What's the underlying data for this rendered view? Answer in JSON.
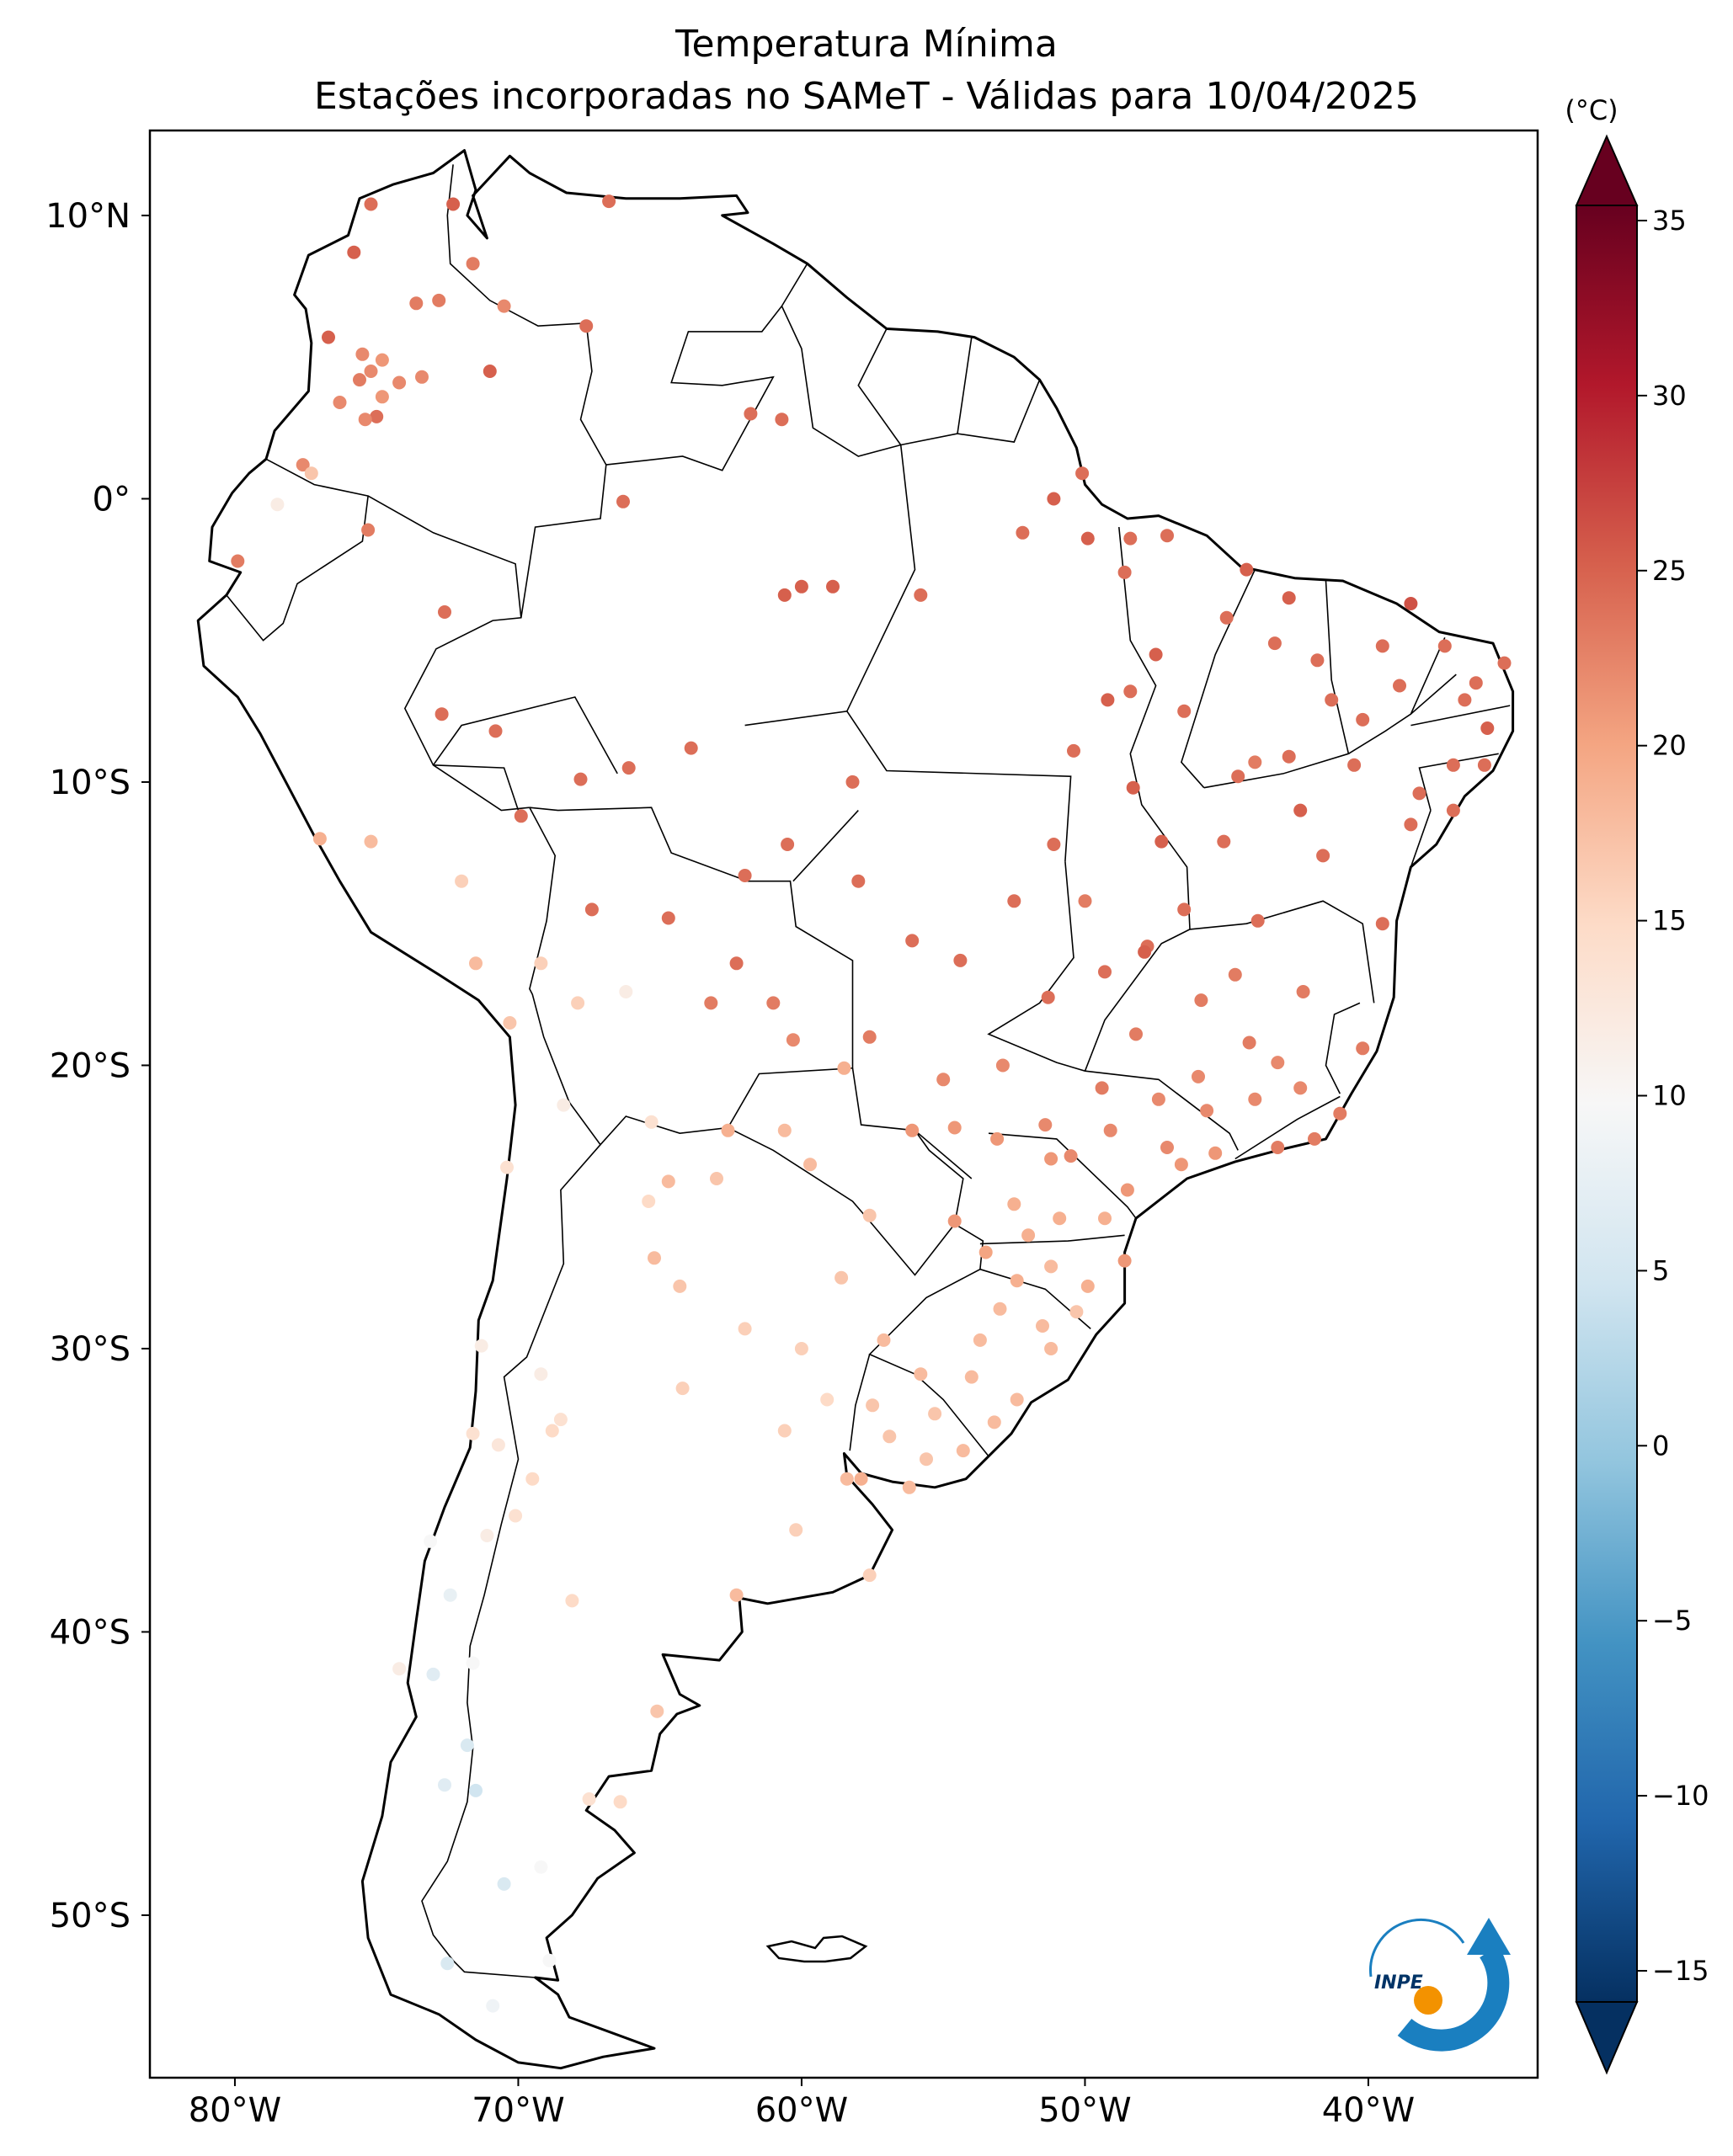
{
  "title": {
    "line1": "Temperatura Mínima",
    "line2": "Estações incorporadas no SAMeT - Válidas para 10/04/2025"
  },
  "axes": {
    "lat_ticks": [
      "10°N",
      "0°",
      "10°S",
      "20°S",
      "30°S",
      "40°S",
      "50°S"
    ],
    "lon_ticks": [
      "80°W",
      "70°W",
      "60°W",
      "50°W",
      "40°W"
    ]
  },
  "colorbar": {
    "unit": "(°C)",
    "ticks": [
      "35",
      "30",
      "25",
      "20",
      "15",
      "10",
      "5",
      "0",
      "−5",
      "−10",
      "−15"
    ],
    "min": -15,
    "max": 35,
    "colors": [
      "#053061",
      "#2166ac",
      "#4393c3",
      "#92c5de",
      "#d1e5f0",
      "#f7f7f7",
      "#fddbc7",
      "#f4a582",
      "#d6604d",
      "#b2182b",
      "#67001f"
    ]
  },
  "logo": {
    "text": "INPE",
    "arc_color": "#1a7fc0",
    "dot_color": "#f39200"
  },
  "stations": [
    [
      -75.2,
      10.4,
      24
    ],
    [
      -72.3,
      10.4,
      25
    ],
    [
      -66.8,
      10.5,
      24
    ],
    [
      -71.6,
      8.3,
      23
    ],
    [
      -75.8,
      8.7,
      25
    ],
    [
      -73.6,
      6.9,
      23
    ],
    [
      -72.8,
      7.0,
      23
    ],
    [
      -70.5,
      6.8,
      22
    ],
    [
      -67.6,
      6.1,
      24
    ],
    [
      -76.7,
      5.7,
      25
    ],
    [
      -75.5,
      5.1,
      22
    ],
    [
      -74.8,
      4.9,
      21
    ],
    [
      -73.4,
      4.3,
      22
    ],
    [
      -75.2,
      4.5,
      22
    ],
    [
      -75.6,
      4.2,
      23
    ],
    [
      -74.2,
      4.1,
      22
    ],
    [
      -74.8,
      3.6,
      21
    ],
    [
      -76.3,
      3.4,
      22
    ],
    [
      -75.0,
      2.9,
      24
    ],
    [
      -75.4,
      2.8,
      22
    ],
    [
      -71.0,
      4.5,
      25
    ],
    [
      -77.6,
      1.2,
      22
    ],
    [
      -77.3,
      0.9,
      17
    ],
    [
      -78.5,
      -0.2,
      12
    ],
    [
      -75.3,
      -1.1,
      23
    ],
    [
      -79.9,
      -2.2,
      23
    ],
    [
      -72.6,
      -4.0,
      24
    ],
    [
      -66.3,
      -0.1,
      24
    ],
    [
      -61.8,
      3.0,
      24
    ],
    [
      -60.7,
      2.8,
      24
    ],
    [
      -60.0,
      -3.1,
      25
    ],
    [
      -60.6,
      -3.4,
      25
    ],
    [
      -58.9,
      -3.1,
      25
    ],
    [
      -55.8,
      -3.4,
      24
    ],
    [
      -52.2,
      -1.2,
      24
    ],
    [
      -51.1,
      0.0,
      25
    ],
    [
      -50.1,
      0.9,
      24
    ],
    [
      -49.9,
      -1.4,
      25
    ],
    [
      -48.4,
      -1.4,
      24
    ],
    [
      -48.6,
      -2.6,
      24
    ],
    [
      -47.1,
      -1.3,
      24
    ],
    [
      -44.3,
      -2.5,
      25
    ],
    [
      -42.8,
      -3.5,
      25
    ],
    [
      -45.0,
      -4.2,
      24
    ],
    [
      -47.5,
      -5.5,
      25
    ],
    [
      -48.4,
      -6.8,
      24
    ],
    [
      -49.2,
      -7.1,
      25
    ],
    [
      -50.4,
      -8.9,
      24
    ],
    [
      -46.5,
      -7.5,
      24
    ],
    [
      -43.3,
      -5.1,
      24
    ],
    [
      -41.8,
      -5.7,
      24
    ],
    [
      -39.5,
      -5.2,
      24
    ],
    [
      -38.5,
      -3.7,
      26
    ],
    [
      -37.3,
      -5.2,
      24
    ],
    [
      -38.9,
      -6.6,
      24
    ],
    [
      -36.6,
      -7.1,
      24
    ],
    [
      -35.2,
      -5.8,
      24
    ],
    [
      -35.8,
      -8.1,
      25
    ],
    [
      -37.0,
      -9.4,
      24
    ],
    [
      -38.5,
      -11.5,
      24
    ],
    [
      -40.5,
      -9.4,
      24
    ],
    [
      -42.4,
      -11.0,
      25
    ],
    [
      -44.6,
      -9.8,
      24
    ],
    [
      -43.9,
      -14.9,
      24
    ],
    [
      -41.6,
      -12.6,
      24
    ],
    [
      -39.5,
      -15.0,
      24
    ],
    [
      -40.2,
      -19.4,
      23
    ],
    [
      -42.3,
      -17.4,
      23
    ],
    [
      -43.2,
      -19.9,
      22
    ],
    [
      -44.7,
      -16.8,
      23
    ],
    [
      -45.9,
      -17.7,
      23
    ],
    [
      -47.8,
      -15.8,
      24
    ],
    [
      -49.3,
      -16.7,
      24
    ],
    [
      -51.3,
      -17.6,
      24
    ],
    [
      -48.3,
      -10.2,
      25
    ],
    [
      -47.3,
      -12.1,
      25
    ],
    [
      -46.5,
      -14.5,
      24
    ],
    [
      -51.1,
      -12.2,
      24
    ],
    [
      -52.5,
      -14.2,
      24
    ],
    [
      -54.4,
      -16.3,
      24
    ],
    [
      -56.1,
      -15.6,
      24
    ],
    [
      -58.0,
      -13.5,
      24
    ],
    [
      -58.2,
      -10.0,
      24
    ],
    [
      -60.5,
      -12.2,
      24
    ],
    [
      -62.0,
      -13.3,
      24
    ],
    [
      -63.9,
      -8.8,
      24
    ],
    [
      -66.1,
      -9.5,
      24
    ],
    [
      -67.8,
      -9.9,
      24
    ],
    [
      -69.9,
      -11.2,
      24
    ],
    [
      -72.7,
      -7.6,
      24
    ],
    [
      -70.8,
      -8.2,
      24
    ],
    [
      -67.4,
      -14.5,
      24
    ],
    [
      -64.7,
      -14.8,
      24
    ],
    [
      -63.2,
      -17.8,
      23
    ],
    [
      -61.0,
      -17.8,
      23
    ],
    [
      -60.3,
      -19.1,
      22
    ],
    [
      -62.3,
      -16.4,
      24
    ],
    [
      -57.6,
      -19.0,
      23
    ],
    [
      -55.0,
      -20.5,
      22
    ],
    [
      -54.6,
      -22.2,
      21
    ],
    [
      -53.1,
      -22.6,
      21
    ],
    [
      -51.4,
      -22.1,
      22
    ],
    [
      -49.1,
      -22.3,
      22
    ],
    [
      -47.1,
      -22.9,
      22
    ],
    [
      -46.6,
      -23.5,
      21
    ],
    [
      -45.4,
      -23.1,
      21
    ],
    [
      -43.2,
      -22.9,
      23
    ],
    [
      -41.9,
      -22.6,
      23
    ],
    [
      -44.0,
      -21.2,
      22
    ],
    [
      -49.3,
      -25.4,
      19
    ],
    [
      -51.2,
      -23.3,
      21
    ],
    [
      -52.5,
      -24.9,
      19
    ],
    [
      -54.6,
      -25.5,
      21
    ],
    [
      -48.6,
      -26.9,
      21
    ],
    [
      -49.9,
      -27.8,
      19
    ],
    [
      -51.2,
      -27.1,
      18
    ],
    [
      -52.4,
      -27.6,
      19
    ],
    [
      -53.5,
      -26.6,
      20
    ],
    [
      -51.2,
      -30.0,
      18
    ],
    [
      -52.4,
      -31.8,
      18
    ],
    [
      -53.7,
      -29.7,
      18
    ],
    [
      -55.8,
      -30.9,
      18
    ],
    [
      -57.1,
      -29.7,
      18
    ],
    [
      -54.3,
      -33.6,
      18
    ],
    [
      -56.2,
      -34.9,
      18
    ],
    [
      -57.9,
      -34.6,
      19
    ],
    [
      -58.4,
      -34.6,
      18
    ],
    [
      -60.6,
      -32.9,
      16
    ],
    [
      -59.1,
      -31.8,
      15
    ],
    [
      -60.0,
      -30.0,
      16
    ],
    [
      -62.0,
      -29.3,
      16
    ],
    [
      -64.2,
      -31.4,
      16
    ],
    [
      -65.4,
      -24.8,
      15
    ],
    [
      -68.8,
      -32.9,
      15
    ],
    [
      -69.2,
      -30.9,
      12
    ],
    [
      -68.5,
      -32.5,
      14
    ],
    [
      -71.6,
      -33.0,
      14
    ],
    [
      -70.7,
      -33.4,
      13
    ],
    [
      -71.3,
      -29.9,
      12
    ],
    [
      -70.4,
      -23.6,
      14
    ],
    [
      -70.3,
      -18.5,
      17
    ],
    [
      -69.2,
      -16.4,
      16
    ],
    [
      -71.5,
      -16.4,
      18
    ],
    [
      -77.0,
      -12.0,
      19
    ],
    [
      -75.2,
      -12.1,
      18
    ],
    [
      -72.0,
      -13.5,
      16
    ],
    [
      -73.1,
      -36.8,
      10
    ],
    [
      -72.4,
      -38.7,
      8
    ],
    [
      -73.0,
      -41.5,
      7
    ],
    [
      -71.6,
      -41.1,
      10
    ],
    [
      -68.1,
      -38.9,
      15
    ],
    [
      -65.1,
      -42.8,
      17
    ],
    [
      -66.4,
      -46.0,
      15
    ],
    [
      -68.9,
      -51.6,
      10
    ],
    [
      -70.9,
      -53.2,
      9
    ],
    [
      -72.5,
      -51.7,
      6
    ],
    [
      -71.5,
      -45.6,
      5
    ],
    [
      -71.8,
      -44.0,
      6
    ],
    [
      -62.3,
      -38.7,
      18
    ],
    [
      -60.2,
      -36.4,
      16
    ],
    [
      -57.6,
      -38.0,
      16
    ],
    [
      -64.3,
      -27.8,
      17
    ],
    [
      -65.2,
      -26.8,
      18
    ],
    [
      -63.0,
      -24.0,
      17
    ],
    [
      -58.6,
      -27.5,
      17
    ],
    [
      -59.7,
      -23.5,
      18
    ],
    [
      -57.6,
      -25.3,
      17
    ],
    [
      -56.1,
      -22.3,
      21
    ],
    [
      -52.9,
      -20.0,
      22
    ],
    [
      -49.4,
      -20.8,
      23
    ],
    [
      -48.2,
      -18.9,
      23
    ],
    [
      -47.9,
      -16.0,
      25
    ],
    [
      -50.0,
      -14.2,
      23
    ],
    [
      -45.1,
      -12.1,
      24
    ],
    [
      -44.0,
      -9.3,
      23
    ],
    [
      -42.8,
      -9.1,
      24
    ],
    [
      -41.3,
      -7.1,
      24
    ],
    [
      -40.2,
      -7.8,
      24
    ],
    [
      -38.2,
      -10.4,
      24
    ],
    [
      -37.0,
      -11.0,
      24
    ],
    [
      -36.2,
      -6.5,
      24
    ],
    [
      -35.9,
      -9.4,
      24
    ],
    [
      -50.5,
      -23.2,
      22
    ],
    [
      -46.0,
      -20.4,
      22
    ],
    [
      -44.2,
      -19.2,
      23
    ],
    [
      -42.4,
      -20.8,
      22
    ],
    [
      -41.0,
      -21.7,
      23
    ],
    [
      -45.7,
      -21.6,
      22
    ],
    [
      -47.4,
      -21.2,
      22
    ],
    [
      -48.5,
      -24.4,
      21
    ],
    [
      -50.9,
      -25.4,
      19
    ],
    [
      -52.0,
      -26.0,
      19
    ],
    [
      -53.0,
      -28.6,
      18
    ],
    [
      -50.3,
      -28.7,
      17
    ],
    [
      -51.5,
      -29.2,
      18
    ],
    [
      -55.3,
      -32.3,
      17
    ],
    [
      -54.0,
      -31.0,
      18
    ],
    [
      -53.2,
      -32.6,
      18
    ],
    [
      -55.6,
      -33.9,
      17
    ],
    [
      -56.9,
      -33.1,
      17
    ],
    [
      -57.5,
      -32.0,
      17
    ],
    [
      -67.9,
      -17.8,
      16
    ],
    [
      -66.2,
      -17.4,
      12
    ],
    [
      -68.4,
      -21.4,
      12
    ],
    [
      -65.3,
      -22.0,
      14
    ],
    [
      -64.7,
      -24.1,
      18
    ],
    [
      -62.6,
      -22.3,
      19
    ],
    [
      -60.6,
      -22.3,
      18
    ],
    [
      -58.5,
      -20.1,
      19
    ],
    [
      -74.2,
      -41.3,
      12
    ],
    [
      -72.6,
      -45.4,
      7
    ],
    [
      -70.5,
      -48.9,
      6
    ],
    [
      -69.2,
      -48.3,
      10
    ],
    [
      -71.1,
      -36.6,
      12
    ],
    [
      -70.1,
      -35.9,
      14
    ],
    [
      -69.5,
      -34.6,
      15
    ],
    [
      -67.5,
      -45.9,
      14
    ]
  ]
}
